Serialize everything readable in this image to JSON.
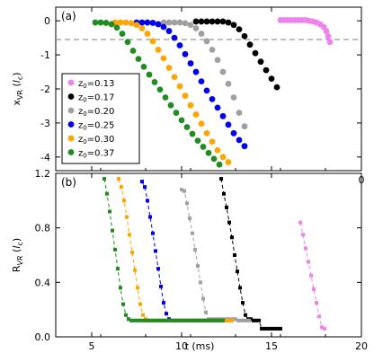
{
  "chart_data": [
    {
      "panel_label": "(a)",
      "type": "scatter",
      "ylabel": "x_VR (l_c)",
      "ylabel_parts": {
        "main": "x",
        "sub": "VR",
        "unit_open": " (",
        "unit_main": "l",
        "unit_sub": "c",
        "unit_close": ")"
      },
      "xlim": [
        3,
        20
      ],
      "ylim": [
        -4.4,
        0.4
      ],
      "yticks": [
        0,
        -1,
        -2,
        -3,
        -4
      ],
      "ytick_labels": [
        "0",
        "-1",
        "-2",
        "-3",
        "-4"
      ],
      "xticks": [
        5,
        10,
        15,
        20
      ],
      "xtick_labels": [
        "",
        "",
        "",
        "0"
      ],
      "reference_line": {
        "y": -0.55,
        "style": "dashed",
        "color": "#999999"
      },
      "legend_position": "lower-left",
      "series": [
        {
          "name": "z0=0.13",
          "name_main": "z",
          "name_sub": "0",
          "name_rest": "=0.13",
          "color": "#ee82ee",
          "x": [
            15.5,
            15.7,
            15.9,
            16.1,
            16.3,
            16.5,
            16.7,
            16.9,
            17.1,
            17.3,
            17.5,
            17.7,
            17.9,
            18.05,
            18.15,
            18.25
          ],
          "y": [
            0.02,
            0.02,
            0.02,
            0.02,
            0.02,
            0.02,
            0.02,
            0.02,
            0.0,
            -0.02,
            -0.05,
            -0.1,
            -0.18,
            -0.3,
            -0.45,
            -0.62
          ]
        },
        {
          "name": "z0=0.17",
          "name_main": "z",
          "name_sub": "0",
          "name_rest": "=0.17",
          "color": "#000000",
          "x": [
            10.8,
            11.1,
            11.4,
            11.7,
            12.0,
            12.3,
            12.6,
            12.9,
            13.2,
            13.5,
            13.8,
            14.1,
            14.4,
            14.7,
            15.0,
            15.3
          ],
          "y": [
            -0.02,
            -0.02,
            -0.02,
            -0.02,
            -0.02,
            -0.02,
            -0.05,
            -0.12,
            -0.25,
            -0.45,
            -0.7,
            -0.95,
            -1.2,
            -1.45,
            -1.7,
            -1.95
          ]
        },
        {
          "name": "z0=0.20",
          "name_main": "z",
          "name_sub": "0",
          "name_rest": "=0.20",
          "color": "#a0a0a0",
          "x": [
            9.0,
            9.3,
            9.6,
            9.9,
            10.2,
            10.5,
            10.8,
            11.1,
            11.4,
            11.7,
            12.0,
            12.3,
            12.6,
            12.9,
            13.2,
            13.5
          ],
          "y": [
            -0.05,
            -0.05,
            -0.05,
            -0.05,
            -0.07,
            -0.12,
            -0.22,
            -0.38,
            -0.6,
            -0.85,
            -1.15,
            -1.5,
            -1.85,
            -2.25,
            -2.7,
            -3.1
          ]
        },
        {
          "name": "z0=0.25",
          "name_main": "z",
          "name_sub": "0",
          "name_rest": "=0.25",
          "color": "#0000ee",
          "x": [
            7.5,
            7.8,
            8.1,
            8.4,
            8.7,
            9.0,
            9.3,
            9.6,
            9.9,
            10.2,
            10.5,
            10.8,
            11.1,
            11.4,
            11.7,
            12.0,
            12.3,
            12.6,
            12.9,
            13.2,
            13.5
          ],
          "y": [
            -0.05,
            -0.05,
            -0.05,
            -0.06,
            -0.1,
            -0.18,
            -0.3,
            -0.5,
            -0.72,
            -0.98,
            -1.25,
            -1.5,
            -1.78,
            -2.05,
            -2.3,
            -2.55,
            -2.8,
            -3.05,
            -3.3,
            -3.5,
            -3.68
          ]
        },
        {
          "name": "z0=0.30",
          "name_main": "z",
          "name_sub": "0",
          "name_rest": "=0.30",
          "color": "#ffa500",
          "x": [
            6.3,
            6.6,
            6.9,
            7.2,
            7.5,
            7.8,
            8.1,
            8.4,
            8.7,
            9.0,
            9.3,
            9.6,
            9.9,
            10.2,
            10.5,
            10.8,
            11.1,
            11.4,
            11.7,
            12.0,
            12.3,
            12.6
          ],
          "y": [
            -0.05,
            -0.05,
            -0.05,
            -0.07,
            -0.12,
            -0.22,
            -0.38,
            -0.6,
            -0.85,
            -1.1,
            -1.38,
            -1.65,
            -1.92,
            -2.2,
            -2.48,
            -2.75,
            -3.02,
            -3.3,
            -3.55,
            -3.8,
            -4.0,
            -4.15
          ]
        },
        {
          "name": "z0=0.37",
          "name_main": "z",
          "name_sub": "0",
          "name_rest": "=0.37",
          "color": "#228b22",
          "x": [
            5.2,
            5.5,
            5.8,
            6.1,
            6.4,
            6.7,
            7.0,
            7.3,
            7.6,
            7.9,
            8.2,
            8.5,
            8.8,
            9.1,
            9.4,
            9.7,
            10.0,
            10.3,
            10.6,
            10.9,
            11.2,
            11.5,
            11.8,
            12.1
          ],
          "y": [
            -0.05,
            -0.05,
            -0.06,
            -0.1,
            -0.2,
            -0.38,
            -0.62,
            -0.88,
            -1.12,
            -1.35,
            -1.58,
            -1.8,
            -2.02,
            -2.25,
            -2.48,
            -2.7,
            -2.92,
            -3.12,
            -3.32,
            -3.52,
            -3.7,
            -3.88,
            -4.05,
            -4.22
          ]
        }
      ]
    },
    {
      "panel_label": "(b)",
      "type": "line",
      "ylabel": "R_VR (l_c)",
      "ylabel_parts": {
        "main": "R",
        "sub": "VR",
        "unit_open": " (",
        "unit_main": "l",
        "unit_sub": "c",
        "unit_close": ")"
      },
      "xlabel": "t (ms)",
      "xlim": [
        3,
        20
      ],
      "ylim": [
        0,
        1.2
      ],
      "yticks": [
        0,
        0.4,
        0.8,
        1.2
      ],
      "ytick_labels": [
        "0.0",
        "0.4",
        "0.8",
        "1.2"
      ],
      "xticks": [
        5,
        10,
        15,
        20
      ],
      "xtick_labels": [
        "5",
        "10",
        "15",
        "20"
      ],
      "series": [
        {
          "color": "#ee82ee",
          "x": [
            16.6,
            16.75,
            16.9,
            17.05,
            17.2,
            17.35,
            17.5,
            17.65,
            17.8,
            17.95
          ],
          "y": [
            0.84,
            0.75,
            0.65,
            0.55,
            0.45,
            0.35,
            0.25,
            0.15,
            0.07,
            0.06
          ]
        },
        {
          "color": "#000000",
          "x": [
            12.2,
            12.35,
            12.5,
            12.65,
            12.8,
            12.95,
            13.1,
            13.25,
            13.4,
            13.55,
            13.7,
            13.85,
            14.0,
            14.15,
            14.3,
            14.45,
            14.6,
            14.75,
            14.9,
            15.05,
            15.2,
            15.35,
            15.5
          ],
          "y": [
            1.16,
            1.05,
            0.95,
            0.84,
            0.73,
            0.6,
            0.48,
            0.36,
            0.25,
            0.16,
            0.13,
            0.13,
            0.12,
            0.12,
            0.12,
            0.06,
            0.06,
            0.06,
            0.06,
            0.06,
            0.06,
            0.06,
            0.06
          ]
        },
        {
          "color": "#a0a0a0",
          "x": [
            10.0,
            10.15,
            10.3,
            10.45,
            10.6,
            10.75,
            10.9,
            11.05,
            11.2,
            11.35,
            11.5,
            11.65,
            11.8,
            11.95,
            12.1,
            12.25,
            12.4,
            12.55,
            12.7,
            12.85,
            13.0,
            13.15,
            13.3,
            13.45,
            13.6,
            13.75
          ],
          "y": [
            1.08,
            1.07,
            0.98,
            0.87,
            0.76,
            0.64,
            0.52,
            0.4,
            0.28,
            0.18,
            0.13,
            0.13,
            0.13,
            0.13,
            0.13,
            0.13,
            0.13,
            0.13,
            0.13,
            0.13,
            0.13,
            0.12,
            0.12,
            0.12,
            0.12,
            0.12
          ]
        },
        {
          "color": "#0000ee",
          "x": [
            7.8,
            7.95,
            8.1,
            8.25,
            8.4,
            8.55,
            8.7,
            8.85,
            9.0,
            9.15,
            9.3,
            9.45,
            9.6,
            9.75,
            9.9,
            10.05,
            10.2,
            10.35,
            10.5,
            10.65,
            10.8,
            10.95,
            11.1,
            11.25,
            11.4,
            11.55,
            11.7,
            11.85,
            12.0,
            12.15,
            12.3
          ],
          "y": [
            1.14,
            1.1,
            1.0,
            0.88,
            0.76,
            0.63,
            0.5,
            0.37,
            0.25,
            0.17,
            0.13,
            0.12,
            0.12,
            0.12,
            0.12,
            0.12,
            0.12,
            0.12,
            0.12,
            0.12,
            0.12,
            0.12,
            0.12,
            0.12,
            0.12,
            0.12,
            0.12,
            0.12,
            0.12,
            0.12,
            0.12
          ]
        },
        {
          "color": "#ffa500",
          "x": [
            6.5,
            6.65,
            6.8,
            6.95,
            7.1,
            7.25,
            7.4,
            7.55,
            7.7,
            7.85,
            8.0,
            8.15,
            8.3,
            8.45,
            8.6,
            8.75,
            8.9,
            9.05,
            9.2,
            9.35,
            9.5,
            9.65,
            9.8,
            9.95,
            10.1,
            10.25,
            10.4,
            10.55,
            10.7,
            10.85,
            11.0,
            11.15,
            11.3,
            11.45,
            11.6,
            11.75,
            11.9,
            12.05,
            12.2,
            12.35,
            12.5,
            12.65,
            12.8
          ],
          "y": [
            1.16,
            1.1,
            1.0,
            0.88,
            0.75,
            0.62,
            0.49,
            0.36,
            0.24,
            0.16,
            0.13,
            0.12,
            0.12,
            0.12,
            0.12,
            0.12,
            0.12,
            0.12,
            0.12,
            0.12,
            0.12,
            0.12,
            0.12,
            0.12,
            0.12,
            0.12,
            0.12,
            0.12,
            0.12,
            0.12,
            0.12,
            0.12,
            0.12,
            0.12,
            0.12,
            0.12,
            0.12,
            0.12,
            0.12,
            0.12,
            0.12,
            0.12,
            0.12
          ]
        },
        {
          "color": "#228b22",
          "x": [
            5.7,
            5.85,
            6.0,
            6.15,
            6.3,
            6.45,
            6.6,
            6.75,
            6.9,
            7.05,
            7.2,
            7.35,
            7.5,
            7.65,
            7.8,
            7.95,
            8.1,
            8.25,
            8.4,
            8.55,
            8.7,
            8.85,
            9.0,
            9.15,
            9.3,
            9.45,
            9.6,
            9.75,
            9.9,
            10.05,
            10.2,
            10.35,
            10.5,
            10.65,
            10.8,
            10.95,
            11.1,
            11.25,
            11.4,
            11.55,
            11.7,
            11.85,
            12.0,
            12.15,
            12.3
          ],
          "y": [
            1.16,
            1.05,
            0.92,
            0.78,
            0.64,
            0.5,
            0.36,
            0.24,
            0.16,
            0.13,
            0.12,
            0.12,
            0.12,
            0.12,
            0.12,
            0.12,
            0.12,
            0.12,
            0.12,
            0.12,
            0.12,
            0.12,
            0.12,
            0.12,
            0.12,
            0.12,
            0.12,
            0.12,
            0.12,
            0.12,
            0.12,
            0.12,
            0.12,
            0.12,
            0.12,
            0.12,
            0.12,
            0.12,
            0.12,
            0.12,
            0.12,
            0.12,
            0.12,
            0.12,
            0.12
          ]
        }
      ]
    }
  ]
}
